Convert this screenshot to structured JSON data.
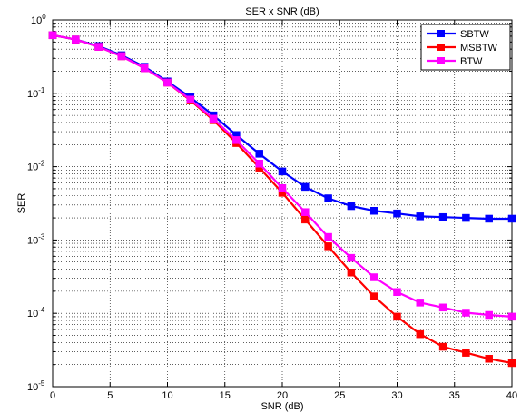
{
  "chart_data": {
    "type": "line",
    "title": "SER x SNR (dB)",
    "xlabel": "SNR (dB)",
    "ylabel": "SER",
    "xlim": [
      0,
      40
    ],
    "ylim": [
      1e-05,
      1
    ],
    "yscale": "log",
    "grid": true,
    "legend_position": "top-right",
    "x_ticks": [
      "0",
      "5",
      "10",
      "15",
      "20",
      "25",
      "30",
      "35",
      "40"
    ],
    "y_ticks": [
      {
        "base": "10",
        "exp": "0"
      },
      {
        "base": "10",
        "exp": "-1"
      },
      {
        "base": "10",
        "exp": "-2"
      },
      {
        "base": "10",
        "exp": "-3"
      },
      {
        "base": "10",
        "exp": "-4"
      },
      {
        "base": "10",
        "exp": "-5"
      }
    ],
    "x": [
      0,
      2,
      4,
      6,
      8,
      10,
      12,
      14,
      16,
      18,
      20,
      22,
      24,
      26,
      28,
      30,
      32,
      34,
      36,
      38,
      40
    ],
    "series": [
      {
        "name": "SBTW",
        "color": "#0000ff",
        "values": [
          0.62,
          0.54,
          0.44,
          0.33,
          0.23,
          0.145,
          0.088,
          0.05,
          0.027,
          0.015,
          0.0086,
          0.0053,
          0.0037,
          0.0029,
          0.0025,
          0.0023,
          0.0021,
          0.00205,
          0.002,
          0.00195,
          0.00195
        ]
      },
      {
        "name": "MSBTW",
        "color": "#ff0000",
        "values": [
          0.62,
          0.54,
          0.43,
          0.32,
          0.22,
          0.14,
          0.08,
          0.043,
          0.021,
          0.0097,
          0.0044,
          0.0019,
          0.00082,
          0.00036,
          0.00017,
          9e-05,
          5.2e-05,
          3.5e-05,
          2.9e-05,
          2.4e-05,
          2.1e-05
        ]
      },
      {
        "name": "BTW",
        "color": "#ff00ff",
        "values": [
          0.62,
          0.54,
          0.43,
          0.32,
          0.22,
          0.14,
          0.082,
          0.045,
          0.023,
          0.011,
          0.0051,
          0.0024,
          0.0011,
          0.00057,
          0.00031,
          0.000195,
          0.00014,
          0.00012,
          0.000102,
          9.5e-05,
          9e-05
        ]
      }
    ]
  }
}
